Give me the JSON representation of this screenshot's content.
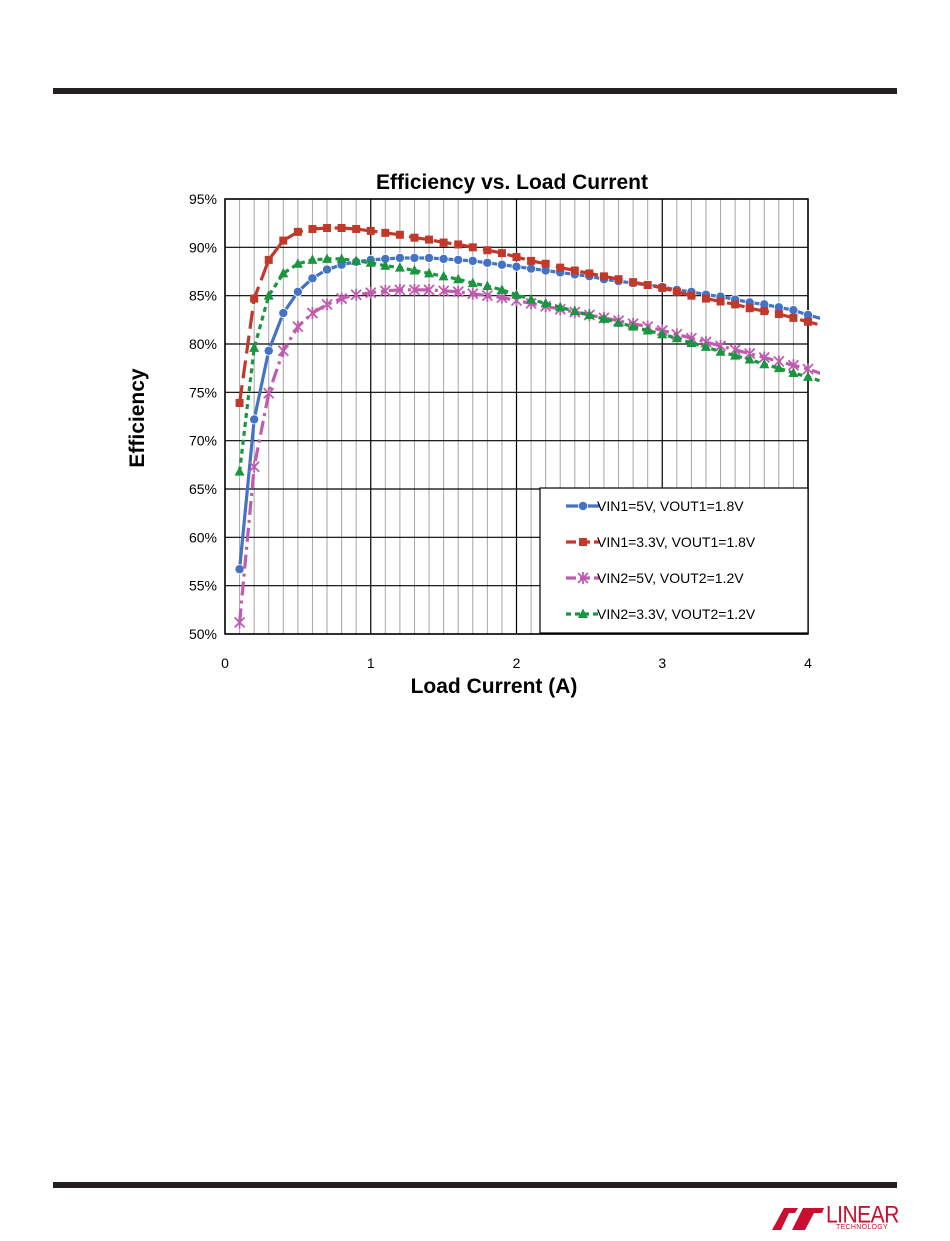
{
  "page": {
    "logo_text": "LINEAR",
    "logo_subtext": "TECHNOLOGY"
  },
  "colors": {
    "series": [
      "#4472c4",
      "#c0392b",
      "#c05cb0",
      "#1a9641"
    ],
    "rule": "#231f20",
    "logo": "#c8102e"
  },
  "chart_data": {
    "type": "line",
    "title": "Efficiency vs. Load Current",
    "xlabel": "Load Current (A)",
    "ylabel": "Efficiency",
    "xlim": [
      0,
      4
    ],
    "ylim": [
      50,
      95
    ],
    "x_ticks": [
      "0",
      "1",
      "2",
      "3",
      "4"
    ],
    "y_ticks": [
      "50%",
      "55%",
      "60%",
      "65%",
      "70%",
      "75%",
      "80%",
      "85%",
      "90%",
      "95%"
    ],
    "grid": true,
    "legend_position": "bottom-right",
    "series": [
      {
        "name": "VIN1=5V, VOUT1=1.8V",
        "marker": "circle",
        "line": "solid",
        "x": [
          0.1,
          0.2,
          0.3,
          0.4,
          0.5,
          0.6,
          0.7,
          0.8,
          0.9,
          1.0,
          1.1,
          1.2,
          1.3,
          1.4,
          1.5,
          1.6,
          1.7,
          1.8,
          1.9,
          2.0,
          2.1,
          2.2,
          2.3,
          2.4,
          2.5,
          2.6,
          2.7,
          2.8,
          2.9,
          3.0,
          3.1,
          3.2,
          3.3,
          3.4,
          3.5,
          3.6,
          3.7,
          3.8,
          3.9,
          4.0,
          4.1
        ],
        "y": [
          56.7,
          72.2,
          79.3,
          83.2,
          85.4,
          86.8,
          87.7,
          88.2,
          88.5,
          88.7,
          88.8,
          88.9,
          88.9,
          88.9,
          88.8,
          88.7,
          88.6,
          88.4,
          88.2,
          88.0,
          87.8,
          87.6,
          87.4,
          87.2,
          87.0,
          86.7,
          86.5,
          86.3,
          86.1,
          85.9,
          85.6,
          85.4,
          85.1,
          84.9,
          84.6,
          84.3,
          84.1,
          83.8,
          83.5,
          83.0,
          82.6
        ]
      },
      {
        "name": "VIN1=3.3V, VOUT1=1.8V",
        "marker": "square",
        "line": "dash",
        "x": [
          0.1,
          0.2,
          0.3,
          0.4,
          0.5,
          0.6,
          0.7,
          0.8,
          0.9,
          1.0,
          1.1,
          1.2,
          1.3,
          1.4,
          1.5,
          1.6,
          1.7,
          1.8,
          1.9,
          2.0,
          2.1,
          2.2,
          2.3,
          2.4,
          2.5,
          2.6,
          2.7,
          2.8,
          2.9,
          3.0,
          3.1,
          3.2,
          3.3,
          3.4,
          3.5,
          3.6,
          3.7,
          3.8,
          3.9,
          4.0,
          4.1
        ],
        "y": [
          73.9,
          84.7,
          88.7,
          90.7,
          91.6,
          91.9,
          92.0,
          92.0,
          91.9,
          91.7,
          91.5,
          91.3,
          91.0,
          90.8,
          90.5,
          90.3,
          90.0,
          89.7,
          89.4,
          89.0,
          88.6,
          88.3,
          87.9,
          87.6,
          87.3,
          87.0,
          86.7,
          86.4,
          86.1,
          85.8,
          85.4,
          85.0,
          84.7,
          84.4,
          84.1,
          83.7,
          83.4,
          83.1,
          82.7,
          82.3,
          81.9
        ]
      },
      {
        "name": "VIN2=5V, VOUT2=1.2V",
        "marker": "star",
        "line": "dashdot",
        "x": [
          0.1,
          0.2,
          0.3,
          0.4,
          0.5,
          0.6,
          0.7,
          0.8,
          0.9,
          1.0,
          1.1,
          1.2,
          1.3,
          1.4,
          1.5,
          1.6,
          1.7,
          1.8,
          1.9,
          2.0,
          2.1,
          2.2,
          2.3,
          2.4,
          2.5,
          2.6,
          2.7,
          2.8,
          2.9,
          3.0,
          3.1,
          3.2,
          3.3,
          3.4,
          3.5,
          3.6,
          3.7,
          3.8,
          3.9,
          4.0,
          4.1
        ],
        "y": [
          51.2,
          67.3,
          74.9,
          79.3,
          81.8,
          83.2,
          84.1,
          84.7,
          85.1,
          85.3,
          85.5,
          85.6,
          85.6,
          85.6,
          85.5,
          85.4,
          85.2,
          85.0,
          84.8,
          84.5,
          84.2,
          83.9,
          83.6,
          83.3,
          83.0,
          82.7,
          82.4,
          82.1,
          81.8,
          81.4,
          81.0,
          80.6,
          80.2,
          79.8,
          79.4,
          79.0,
          78.6,
          78.2,
          77.8,
          77.4,
          76.9
        ]
      },
      {
        "name": "VIN2=3.3V, VOUT2=1.2V",
        "marker": "triangle",
        "line": "dot",
        "x": [
          0.1,
          0.2,
          0.3,
          0.4,
          0.5,
          0.6,
          0.7,
          0.8,
          0.9,
          1.0,
          1.1,
          1.2,
          1.3,
          1.4,
          1.5,
          1.6,
          1.7,
          1.8,
          1.9,
          2.0,
          2.1,
          2.2,
          2.3,
          2.4,
          2.5,
          2.6,
          2.7,
          2.8,
          2.9,
          3.0,
          3.1,
          3.2,
          3.3,
          3.4,
          3.5,
          3.6,
          3.7,
          3.8,
          3.9,
          4.0,
          4.1
        ],
        "y": [
          66.8,
          79.6,
          85.0,
          87.3,
          88.3,
          88.7,
          88.8,
          88.8,
          88.6,
          88.4,
          88.1,
          87.9,
          87.6,
          87.3,
          87.0,
          86.7,
          86.3,
          86.0,
          85.6,
          85.1,
          84.6,
          84.2,
          83.8,
          83.4,
          83.0,
          82.6,
          82.2,
          81.8,
          81.4,
          81.0,
          80.6,
          80.1,
          79.7,
          79.2,
          78.8,
          78.4,
          77.9,
          77.5,
          77.0,
          76.6,
          76.1
        ]
      }
    ]
  }
}
